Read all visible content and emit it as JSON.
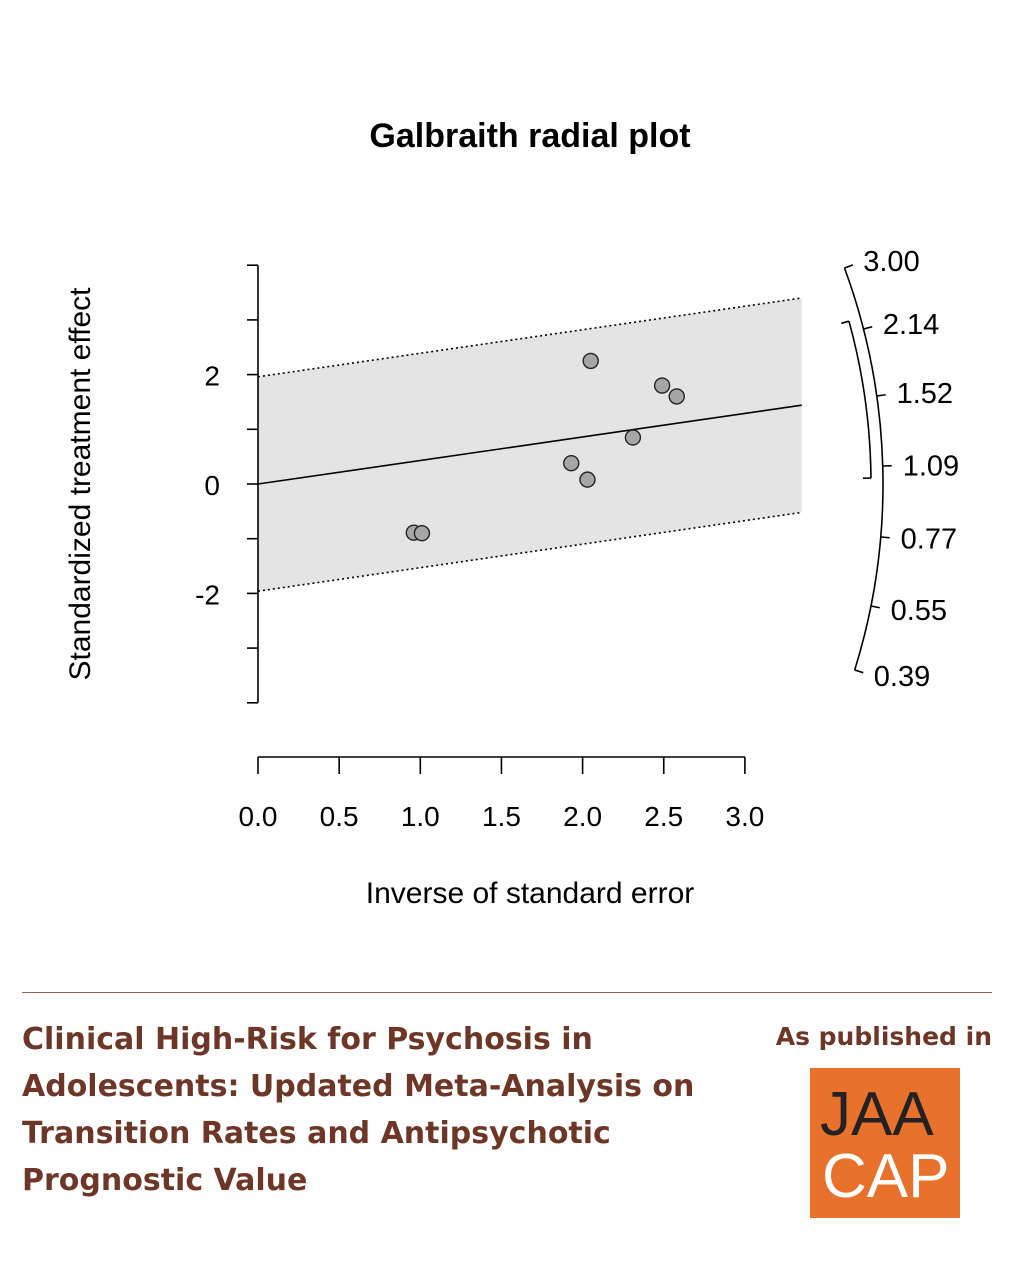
{
  "chart_data": {
    "type": "scatter",
    "title": "Galbraith radial plot",
    "xlabel": "Inverse of standard error",
    "ylabel": "Standardized treatment effect",
    "xlim": [
      0,
      3
    ],
    "ylim": [
      -4,
      4
    ],
    "x_ticks": [
      "0.0",
      "0.5",
      "1.0",
      "1.5",
      "2.0",
      "2.5",
      "3.0"
    ],
    "y_ticks": [
      "2",
      "0",
      "-2"
    ],
    "points": [
      {
        "x": 0.96,
        "y": -0.89
      },
      {
        "x": 1.01,
        "y": -0.9
      },
      {
        "x": 1.93,
        "y": 0.38
      },
      {
        "x": 2.03,
        "y": 0.08
      },
      {
        "x": 2.05,
        "y": 2.25
      },
      {
        "x": 2.31,
        "y": 0.85
      },
      {
        "x": 2.49,
        "y": 1.8
      },
      {
        "x": 2.58,
        "y": 1.6
      }
    ],
    "regression_line": {
      "slope": 0.43,
      "intercept": 0
    },
    "confidence_band": {
      "offset": 1.96
    },
    "radial_scale": {
      "tick_labels": [
        "3.00",
        "2.14",
        "1.52",
        "1.09",
        "0.77",
        "0.55",
        "0.39"
      ],
      "summary_range": [
        "2.14",
        "1.09"
      ]
    },
    "band_color": "#e4e4e4",
    "point_color": "#a6a6a6"
  },
  "footer": {
    "title_lines": [
      "Clinical High-Risk for Psychosis in",
      "Adolescents: Updated Meta-Analysis on",
      "Transition Rates and Antipsychotic",
      "Prognostic Value"
    ],
    "published_label": "As published in",
    "logo_line1": "JAA",
    "logo_line2": "CAP",
    "text_color": "#6e3626",
    "logo_color": "#e8712b"
  }
}
